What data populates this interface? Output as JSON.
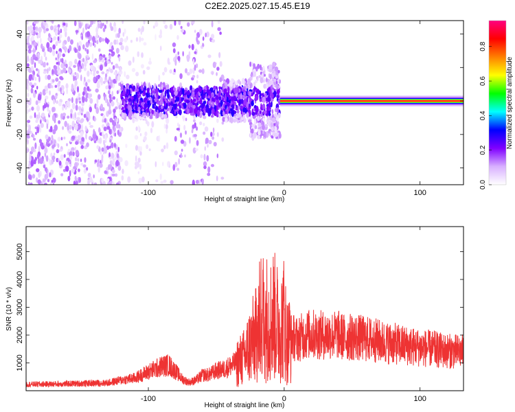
{
  "title": "C2E2.2025.027.15.45.E19",
  "chart_data": [
    {
      "type": "heatmap",
      "xlabel": "Height of straight line (km)",
      "ylabel": "Frequency (Hz)",
      "xlim": [
        -190,
        132
      ],
      "ylim": [
        -50,
        48
      ],
      "xticks": [
        -100,
        0,
        100
      ],
      "xtick_labels": [
        "-100",
        "0",
        "100"
      ],
      "yticks": [
        -40,
        -20,
        0,
        20,
        40
      ],
      "ytick_labels": [
        "-40",
        "-20",
        "0",
        "20",
        "40"
      ],
      "colorbar": {
        "label": "Normalized spectral amplitude",
        "range": [
          0.0,
          0.95
        ],
        "ticks": [
          0.0,
          0.2,
          0.4,
          0.6,
          0.8
        ],
        "tick_labels": [
          "0.0",
          "0.2",
          "0.4",
          "0.6",
          "0.8"
        ],
        "colormap": [
          "#ffffff",
          "#d8b0ff",
          "#8000ff",
          "#0000ff",
          "#00ffff",
          "#00ff00",
          "#ffff00",
          "#ff8000",
          "#ff0000",
          "#ff0080"
        ]
      },
      "band": {
        "x_start": -3,
        "frequency_hz": 0,
        "peak_amplitude": 0.9
      },
      "grid": false
    },
    {
      "type": "line",
      "xlabel": "Height of straight line (km)",
      "ylabel": "SNR (10 * v/v)",
      "xlim": [
        -190,
        132
      ],
      "ylim": [
        0,
        5900
      ],
      "xticks": [
        -100,
        0,
        100
      ],
      "xtick_labels": [
        "-100",
        "0",
        "100"
      ],
      "yticks": [
        1000,
        2000,
        3000,
        4000,
        5000
      ],
      "ytick_labels": [
        "1000",
        "2000",
        "3000",
        "4000",
        "5000"
      ],
      "color": "#ee3333",
      "grid": false,
      "series": [
        {
          "x": [
            -190,
            -170,
            -150,
            -130,
            -120,
            -110,
            -100,
            -90,
            -85,
            -80,
            -75,
            -70,
            -65,
            -60,
            -55,
            -50,
            -45,
            -40,
            -35,
            -30,
            -25,
            -20,
            -18,
            -15,
            -12,
            -10,
            -8,
            -5,
            -3,
            0,
            2,
            5,
            10,
            15,
            20,
            25,
            30,
            35,
            40,
            45,
            50,
            55,
            60,
            65,
            70,
            75,
            80,
            85,
            90,
            95,
            100,
            105,
            110,
            115,
            120,
            125,
            132
          ],
          "y": [
            230,
            240,
            260,
            280,
            380,
            450,
            680,
            880,
            920,
            700,
            420,
            300,
            380,
            560,
            580,
            720,
            760,
            880,
            1000,
            1160,
            1650,
            2050,
            2500,
            2750,
            2600,
            2550,
            2750,
            2450,
            2200,
            2650,
            1750,
            1950,
            1850,
            2000,
            2050,
            2000,
            2000,
            2000,
            2000,
            1900,
            1930,
            1900,
            1860,
            1830,
            1780,
            1720,
            1700,
            1650,
            1620,
            1580,
            1550,
            1520,
            1500,
            1450,
            1430,
            1410,
            1400
          ]
        }
      ]
    }
  ]
}
